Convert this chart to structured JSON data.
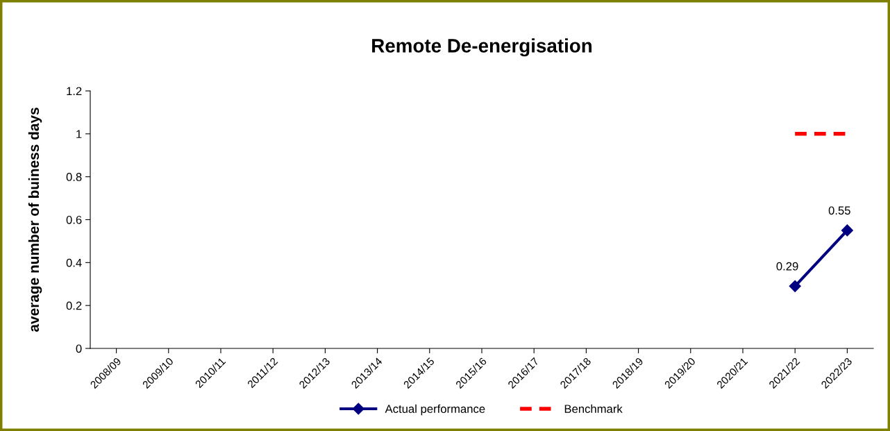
{
  "chart_data": {
    "type": "line",
    "title": "Remote De-energisation",
    "ylabel": "average number of buiness days",
    "categories": [
      "2008/09",
      "2009/10",
      "2010/11",
      "2011/12",
      "2012/13",
      "2013/14",
      "2014/15",
      "2015/16",
      "2016/17",
      "2017/18",
      "2018/19",
      "2019/20",
      "2020/21",
      "2021/22",
      "2022/23"
    ],
    "series": [
      {
        "name": "Actual performance",
        "color": "#000080",
        "marker": "diamond",
        "line_style": "solid",
        "values": [
          null,
          null,
          null,
          null,
          null,
          null,
          null,
          null,
          null,
          null,
          null,
          null,
          null,
          0.29,
          0.55
        ],
        "value_labels": [
          null,
          null,
          null,
          null,
          null,
          null,
          null,
          null,
          null,
          null,
          null,
          null,
          null,
          "0.29",
          "0.55"
        ]
      },
      {
        "name": "Benchmark",
        "color": "#ff0000",
        "marker": "none",
        "line_style": "dashed",
        "values": [
          null,
          null,
          null,
          null,
          null,
          null,
          null,
          null,
          null,
          null,
          null,
          null,
          null,
          1,
          1
        ]
      }
    ],
    "ylim": [
      0,
      1.2
    ],
    "yticks": [
      0,
      0.2,
      0.4,
      0.6,
      0.8,
      1,
      1.2
    ],
    "grid": false,
    "legend": "bottom"
  }
}
